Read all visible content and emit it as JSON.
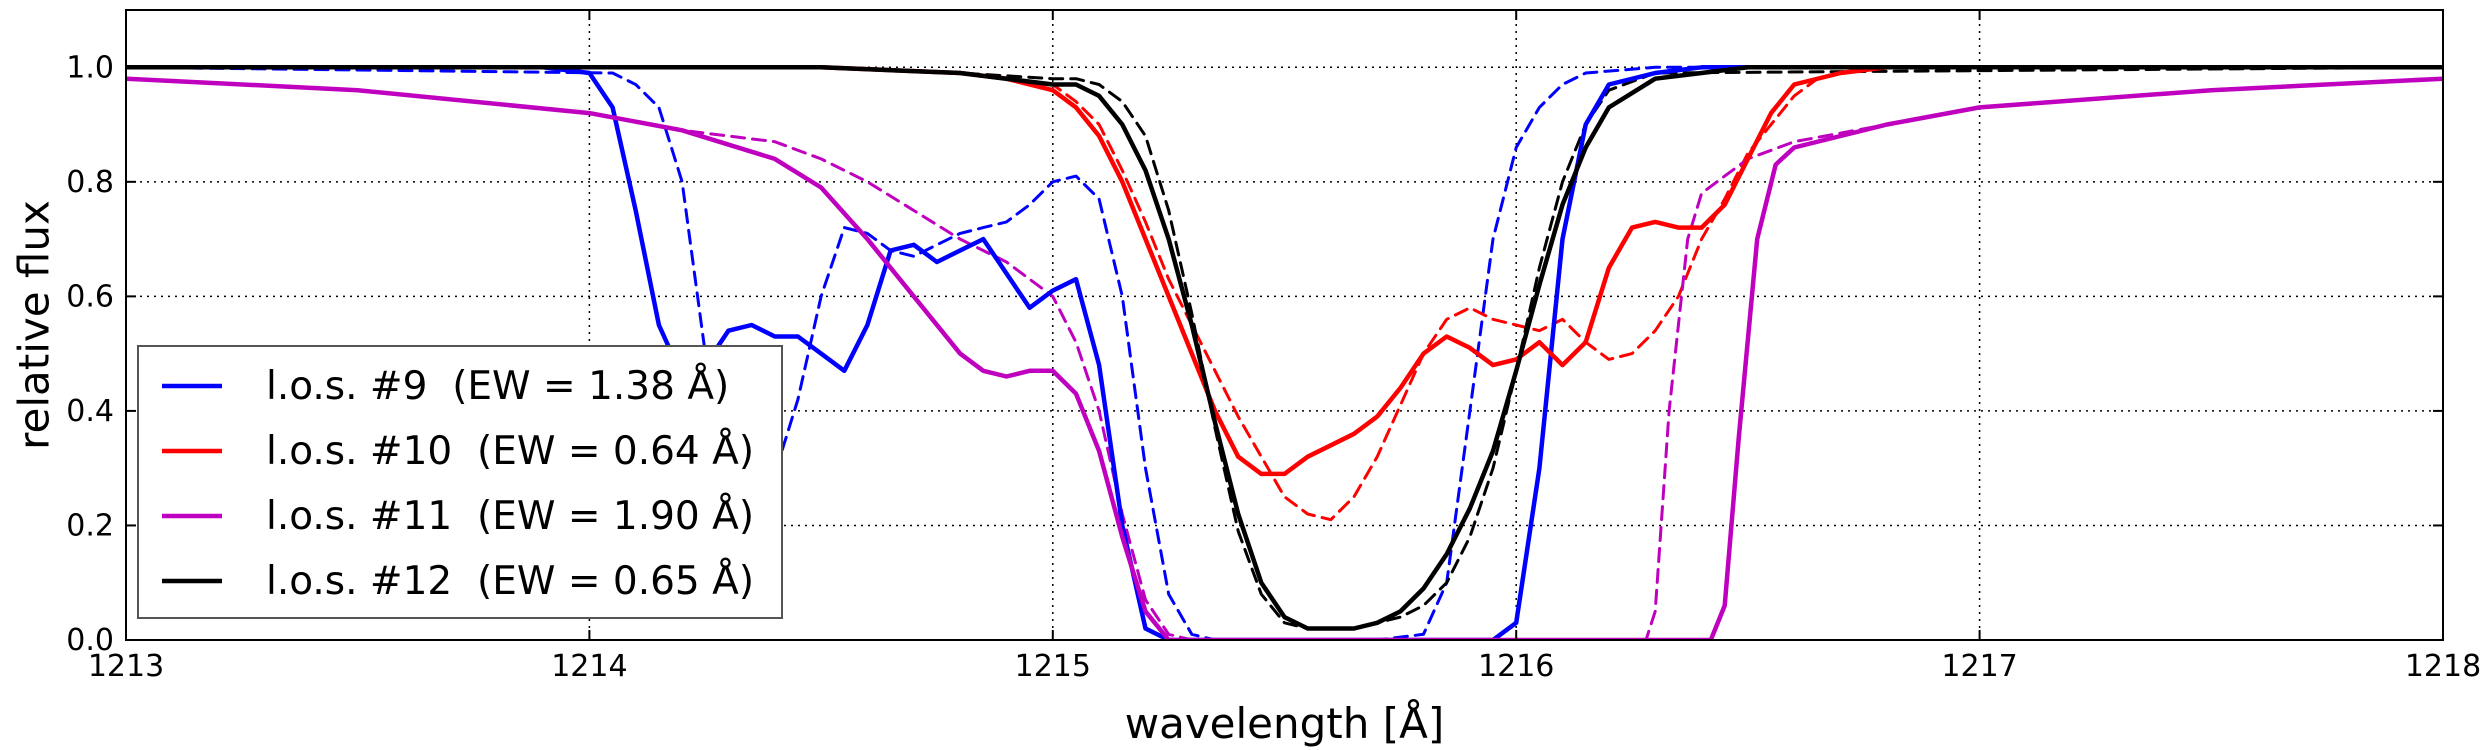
{
  "chart_data": {
    "type": "line",
    "title": "",
    "xlabel": "wavelength [Å]",
    "ylabel": "relative flux",
    "xlim": [
      1213,
      1218
    ],
    "ylim": [
      0.0,
      1.1
    ],
    "grid": true,
    "grid_style": "dotted",
    "legend_location": "lower-left",
    "xticks": [
      1213,
      1214,
      1215,
      1216,
      1217,
      1218
    ],
    "xtick_labels": [
      "1213",
      "1214",
      "1215",
      "1216",
      "1217",
      "1218"
    ],
    "yticks": [
      0.0,
      0.2,
      0.4,
      0.6,
      0.8,
      1.0
    ],
    "ytick_labels": [
      "0.0",
      "0.2",
      "0.4",
      "0.6",
      "0.8",
      "1.0"
    ],
    "series": [
      {
        "name": "l.o.s. #9  (EW = 1.38 Å)",
        "legend_label": "l.o.s. #9  (EW = 1.38 Å)",
        "color": "#0000ff",
        "style": "solid",
        "x": [
          1213.0,
          1213.9,
          1214.0,
          1214.05,
          1214.1,
          1214.15,
          1214.2,
          1214.25,
          1214.3,
          1214.35,
          1214.4,
          1214.45,
          1214.5,
          1214.55,
          1214.6,
          1214.65,
          1214.7,
          1214.75,
          1214.8,
          1214.85,
          1214.9,
          1214.95,
          1215.0,
          1215.05,
          1215.1,
          1215.15,
          1215.2,
          1215.25,
          1215.3,
          1215.7,
          1215.95,
          1216.0,
          1216.05,
          1216.1,
          1216.15,
          1216.2,
          1216.3,
          1216.4,
          1218.0
        ],
        "y": [
          1.0,
          1.0,
          0.99,
          0.93,
          0.75,
          0.55,
          0.46,
          0.48,
          0.54,
          0.55,
          0.53,
          0.53,
          0.5,
          0.47,
          0.55,
          0.68,
          0.69,
          0.66,
          0.68,
          0.7,
          0.64,
          0.58,
          0.61,
          0.63,
          0.48,
          0.2,
          0.02,
          0.0,
          0.0,
          0.0,
          0.0,
          0.03,
          0.3,
          0.7,
          0.9,
          0.97,
          0.99,
          1.0,
          1.0
        ]
      },
      {
        "name": "l.o.s. #9 (dashed)",
        "color": "#0000ff",
        "style": "dashed",
        "x": [
          1213.0,
          1214.05,
          1214.1,
          1214.15,
          1214.2,
          1214.25,
          1214.3,
          1214.35,
          1214.4,
          1214.45,
          1214.5,
          1214.55,
          1214.6,
          1214.65,
          1214.7,
          1214.75,
          1214.8,
          1214.85,
          1214.9,
          1214.95,
          1215.0,
          1215.05,
          1215.1,
          1215.15,
          1215.2,
          1215.25,
          1215.3,
          1215.35,
          1215.4,
          1215.7,
          1215.8,
          1215.85,
          1215.9,
          1215.95,
          1216.0,
          1216.05,
          1216.1,
          1216.15,
          1216.3,
          1218.0
        ],
        "y": [
          1.0,
          0.99,
          0.97,
          0.93,
          0.8,
          0.5,
          0.3,
          0.25,
          0.29,
          0.42,
          0.6,
          0.72,
          0.71,
          0.68,
          0.67,
          0.69,
          0.71,
          0.72,
          0.73,
          0.76,
          0.8,
          0.81,
          0.77,
          0.6,
          0.3,
          0.08,
          0.01,
          0.0,
          0.0,
          0.0,
          0.01,
          0.1,
          0.4,
          0.7,
          0.86,
          0.93,
          0.97,
          0.99,
          1.0,
          1.0
        ]
      },
      {
        "name": "l.o.s. #10  (EW = 0.64 Å)",
        "legend_label": "l.o.s. #10  (EW = 0.64 Å)",
        "color": "#ff0000",
        "style": "solid",
        "x": [
          1213.0,
          1214.5,
          1214.8,
          1214.9,
          1215.0,
          1215.05,
          1215.1,
          1215.15,
          1215.2,
          1215.25,
          1215.3,
          1215.35,
          1215.4,
          1215.45,
          1215.5,
          1215.55,
          1215.6,
          1215.65,
          1215.7,
          1215.75,
          1215.8,
          1215.85,
          1215.9,
          1215.95,
          1216.0,
          1216.05,
          1216.1,
          1216.15,
          1216.2,
          1216.25,
          1216.3,
          1216.35,
          1216.4,
          1216.45,
          1216.5,
          1216.55,
          1216.6,
          1216.7,
          1216.8,
          1217.0,
          1218.0
        ],
        "y": [
          1.0,
          1.0,
          0.99,
          0.98,
          0.96,
          0.93,
          0.88,
          0.8,
          0.7,
          0.6,
          0.5,
          0.4,
          0.32,
          0.29,
          0.29,
          0.32,
          0.34,
          0.36,
          0.39,
          0.44,
          0.5,
          0.53,
          0.51,
          0.48,
          0.49,
          0.52,
          0.48,
          0.52,
          0.65,
          0.72,
          0.73,
          0.72,
          0.72,
          0.76,
          0.84,
          0.92,
          0.97,
          0.99,
          1.0,
          1.0,
          1.0
        ]
      },
      {
        "name": "l.o.s. #10 (dashed)",
        "color": "#ff0000",
        "style": "dashed",
        "x": [
          1213.0,
          1214.5,
          1214.8,
          1214.9,
          1215.0,
          1215.05,
          1215.1,
          1215.15,
          1215.2,
          1215.25,
          1215.3,
          1215.35,
          1215.4,
          1215.45,
          1215.5,
          1215.55,
          1215.6,
          1215.65,
          1215.7,
          1215.75,
          1215.8,
          1215.85,
          1215.9,
          1215.95,
          1216.0,
          1216.05,
          1216.1,
          1216.15,
          1216.2,
          1216.25,
          1216.3,
          1216.35,
          1216.4,
          1216.45,
          1216.5,
          1216.55,
          1216.6,
          1216.65,
          1216.7,
          1216.8,
          1217.0,
          1218.0
        ],
        "y": [
          1.0,
          1.0,
          0.99,
          0.98,
          0.97,
          0.94,
          0.9,
          0.82,
          0.73,
          0.63,
          0.55,
          0.47,
          0.39,
          0.32,
          0.25,
          0.22,
          0.21,
          0.25,
          0.32,
          0.41,
          0.5,
          0.56,
          0.58,
          0.56,
          0.55,
          0.54,
          0.56,
          0.52,
          0.49,
          0.5,
          0.54,
          0.6,
          0.7,
          0.77,
          0.85,
          0.9,
          0.95,
          0.98,
          0.99,
          1.0,
          1.0,
          1.0
        ]
      },
      {
        "name": "l.o.s. #11  (EW = 1.90 Å)",
        "legend_label": "l.o.s. #11  (EW = 1.90 Å)",
        "color": "#bf00bf",
        "style": "solid",
        "x": [
          1213.0,
          1213.5,
          1214.0,
          1214.2,
          1214.4,
          1214.5,
          1214.6,
          1214.7,
          1214.8,
          1214.85,
          1214.9,
          1214.95,
          1215.0,
          1215.05,
          1215.1,
          1215.15,
          1215.2,
          1215.25,
          1216.42,
          1216.45,
          1216.48,
          1216.52,
          1216.56,
          1216.6,
          1216.7,
          1216.8,
          1217.0,
          1217.5,
          1218.0
        ],
        "y": [
          0.98,
          0.96,
          0.92,
          0.89,
          0.84,
          0.79,
          0.7,
          0.6,
          0.5,
          0.47,
          0.46,
          0.47,
          0.47,
          0.43,
          0.33,
          0.18,
          0.05,
          0.0,
          0.0,
          0.06,
          0.35,
          0.7,
          0.83,
          0.86,
          0.88,
          0.9,
          0.93,
          0.96,
          0.98
        ]
      },
      {
        "name": "l.o.s. #11 (dashed)",
        "color": "#bf00bf",
        "style": "dashed",
        "x": [
          1213.0,
          1213.5,
          1214.0,
          1214.2,
          1214.4,
          1214.5,
          1214.6,
          1214.7,
          1214.8,
          1214.9,
          1215.0,
          1215.05,
          1215.1,
          1215.15,
          1215.2,
          1215.25,
          1215.3,
          1216.28,
          1216.3,
          1216.33,
          1216.37,
          1216.4,
          1216.45,
          1216.5,
          1216.6,
          1216.8,
          1217.0,
          1217.5,
          1218.0
        ],
        "y": [
          0.98,
          0.96,
          0.92,
          0.89,
          0.87,
          0.84,
          0.8,
          0.75,
          0.7,
          0.66,
          0.6,
          0.52,
          0.4,
          0.22,
          0.07,
          0.01,
          0.0,
          0.0,
          0.05,
          0.4,
          0.7,
          0.78,
          0.81,
          0.84,
          0.87,
          0.9,
          0.93,
          0.96,
          0.98
        ]
      },
      {
        "name": "l.o.s. #12  (EW = 0.65 Å)",
        "legend_label": "l.o.s. #12  (EW = 0.65 Å)",
        "color": "#000000",
        "style": "solid",
        "x": [
          1213.0,
          1214.5,
          1214.8,
          1215.0,
          1215.05,
          1215.1,
          1215.15,
          1215.2,
          1215.25,
          1215.3,
          1215.35,
          1215.4,
          1215.45,
          1215.5,
          1215.55,
          1215.6,
          1215.65,
          1215.7,
          1215.75,
          1215.8,
          1215.85,
          1215.9,
          1215.95,
          1216.0,
          1216.05,
          1216.1,
          1216.15,
          1216.2,
          1216.3,
          1216.4,
          1216.5,
          1218.0
        ],
        "y": [
          1.0,
          1.0,
          0.99,
          0.97,
          0.97,
          0.95,
          0.9,
          0.82,
          0.7,
          0.55,
          0.38,
          0.22,
          0.1,
          0.04,
          0.02,
          0.02,
          0.02,
          0.03,
          0.05,
          0.09,
          0.15,
          0.23,
          0.33,
          0.47,
          0.62,
          0.76,
          0.86,
          0.93,
          0.98,
          0.99,
          1.0,
          1.0
        ]
      },
      {
        "name": "l.o.s. #12 (dashed)",
        "color": "#000000",
        "style": "dashed",
        "x": [
          1213.0,
          1214.5,
          1214.8,
          1215.0,
          1215.05,
          1215.1,
          1215.15,
          1215.2,
          1215.25,
          1215.3,
          1215.35,
          1215.4,
          1215.45,
          1215.5,
          1215.55,
          1215.6,
          1215.65,
          1215.7,
          1215.75,
          1215.8,
          1215.85,
          1215.9,
          1215.95,
          1216.0,
          1216.05,
          1216.1,
          1216.15,
          1216.2,
          1216.3,
          1218.0
        ],
        "y": [
          1.0,
          1.0,
          0.99,
          0.98,
          0.98,
          0.97,
          0.94,
          0.88,
          0.75,
          0.57,
          0.37,
          0.19,
          0.08,
          0.03,
          0.02,
          0.02,
          0.02,
          0.03,
          0.04,
          0.06,
          0.1,
          0.18,
          0.3,
          0.47,
          0.65,
          0.8,
          0.9,
          0.96,
          0.99,
          1.0
        ]
      }
    ]
  }
}
